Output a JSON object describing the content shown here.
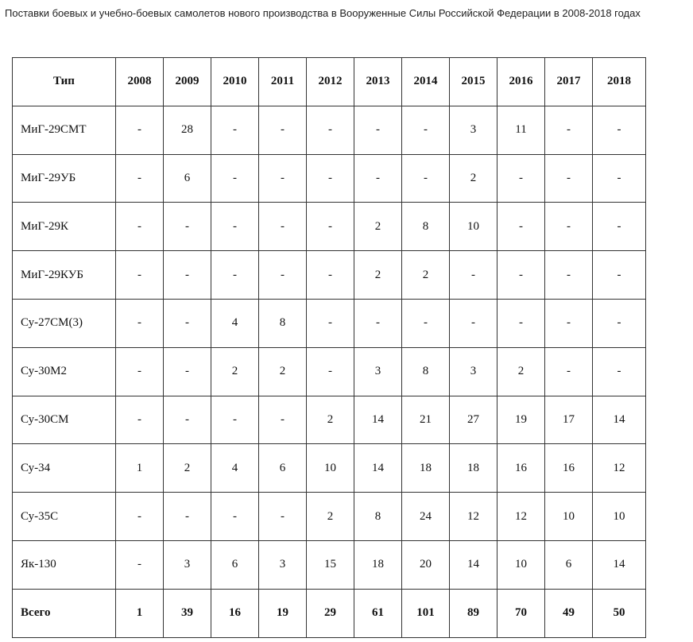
{
  "header": {
    "title": "Поставки боевых и учебно-боевых самолетов нового производства в Вооруженные Силы Российской Федерации в 2008-2018 годах"
  },
  "table": {
    "columns": [
      "Тип",
      "2008",
      "2009",
      "2010",
      "2011",
      "2012",
      "2013",
      "2014",
      "2015",
      "2016",
      "2017",
      "2018"
    ],
    "rows": [
      [
        "МиГ-29СМТ",
        "-",
        "28",
        "-",
        "-",
        "-",
        "-",
        "-",
        "3",
        "11",
        "-",
        "-"
      ],
      [
        "МиГ-29УБ",
        "-",
        "6",
        "-",
        "-",
        "-",
        "-",
        "-",
        "2",
        "-",
        "-",
        "-"
      ],
      [
        "МиГ-29К",
        "-",
        "-",
        "-",
        "-",
        "-",
        "2",
        "8",
        "10",
        "-",
        "-",
        "-"
      ],
      [
        "МиГ-29КУБ",
        "-",
        "-",
        "-",
        "-",
        "-",
        "2",
        "2",
        "-",
        "-",
        "-",
        "-"
      ],
      [
        "Су-27СМ(3)",
        "-",
        "-",
        "4",
        "8",
        "-",
        "-",
        "-",
        "-",
        "-",
        "-",
        "-"
      ],
      [
        "Су-30М2",
        "-",
        "-",
        "2",
        "2",
        "-",
        "3",
        "8",
        "3",
        "2",
        "-",
        "-"
      ],
      [
        "Су-30СМ",
        "-",
        "-",
        "-",
        "-",
        "2",
        "14",
        "21",
        "27",
        "19",
        "17",
        "14"
      ],
      [
        "Су-34",
        "1",
        "2",
        "4",
        "6",
        "10",
        "14",
        "18",
        "18",
        "16",
        "16",
        "12"
      ],
      [
        "Су-35С",
        "-",
        "-",
        "-",
        "-",
        "2",
        "8",
        "24",
        "12",
        "12",
        "10",
        "10"
      ],
      [
        "Як-130",
        "-",
        "3",
        "6",
        "3",
        "15",
        "18",
        "20",
        "14",
        "10",
        "6",
        "14"
      ],
      [
        "Всего",
        "1",
        "39",
        "16",
        "19",
        "29",
        "61",
        "101",
        "89",
        "70",
        "49",
        "50"
      ]
    ]
  }
}
